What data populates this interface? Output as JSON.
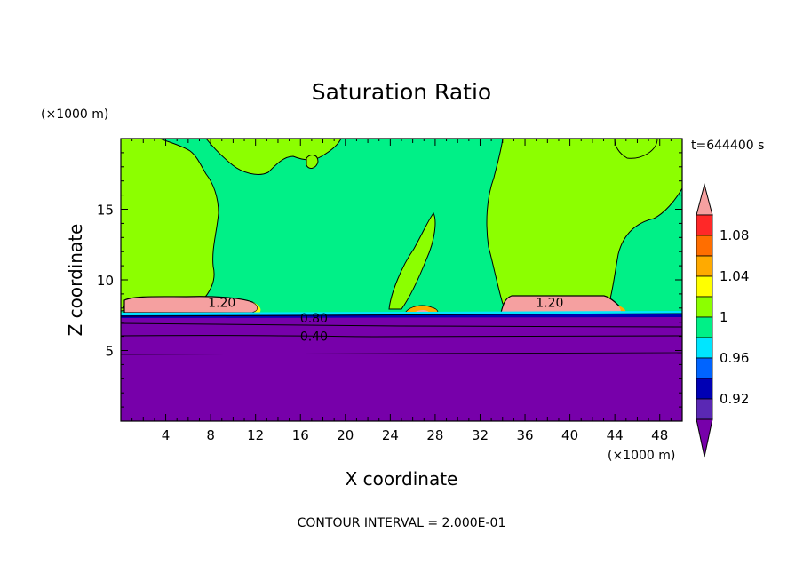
{
  "chart_data": {
    "type": "heatmap",
    "title": "Saturation Ratio",
    "xlabel": "X coordinate",
    "ylabel": "Z coordinate",
    "x_unit": "(×1000 m)",
    "y_unit": "(×1000 m)",
    "time_label": "t=644400 s",
    "footer": "CONTOUR INTERVAL = 2.000E-01",
    "xlim": [
      0,
      50
    ],
    "ylim": [
      0,
      20
    ],
    "x_ticks": [
      4,
      8,
      12,
      16,
      20,
      24,
      28,
      32,
      36,
      40,
      44,
      48
    ],
    "y_ticks": [
      5,
      10,
      15
    ],
    "colorbar": {
      "bands": [
        {
          "range": [
            0.0,
            0.9
          ],
          "color": "#7700aa"
        },
        {
          "range": [
            0.9,
            0.92
          ],
          "color": "#5a28b4"
        },
        {
          "range": [
            0.92,
            0.94
          ],
          "color": "#0000b4"
        },
        {
          "range": [
            0.94,
            0.96
          ],
          "color": "#0064ff"
        },
        {
          "range": [
            0.96,
            0.98
          ],
          "color": "#00e6ff"
        },
        {
          "range": [
            0.98,
            1.0
          ],
          "color": "#00f087"
        },
        {
          "range": [
            1.0,
            1.02
          ],
          "color": "#8cff00"
        },
        {
          "range": [
            1.02,
            1.04
          ],
          "color": "#ffff00"
        },
        {
          "range": [
            1.04,
            1.06
          ],
          "color": "#ffaa00"
        },
        {
          "range": [
            1.06,
            1.08
          ],
          "color": "#ff6e00"
        },
        {
          "range": [
            1.08,
            1.1
          ],
          "color": "#ff2828"
        },
        {
          "range": [
            1.1,
            99
          ],
          "color": "#f5a0a0"
        }
      ],
      "tick_labels": [
        "1.08",
        "1.04",
        "1",
        "0.96",
        "0.92"
      ]
    },
    "contour_labels": [
      {
        "text": "1.20",
        "x": 9.0,
        "z": 8.4
      },
      {
        "text": "1.20",
        "x": 38.2,
        "z": 8.4
      },
      {
        "text": "0.80",
        "x": 17.2,
        "z": 7.3
      },
      {
        "text": "0.40",
        "x": 17.2,
        "z": 6.0
      }
    ]
  }
}
